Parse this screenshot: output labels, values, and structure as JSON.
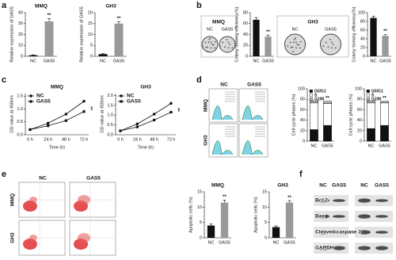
{
  "panel_labels": [
    "a",
    "b",
    "c",
    "d",
    "e",
    "f"
  ],
  "images": {
    "b": {
      "titles": [
        "MMQ",
        "GH3"
      ],
      "columns": [
        "NC",
        "GAS5",
        "NC",
        "GAS5"
      ]
    },
    "d": {
      "columns": [
        "NC",
        "GAS5"
      ],
      "rows": [
        "MMQ",
        "GH3"
      ]
    },
    "e": {
      "columns": [
        "NC",
        "GAS5"
      ],
      "rows": [
        "MMQ",
        "GH3"
      ]
    },
    "f": {
      "columns": [
        "NC",
        "GAS5",
        "NC",
        "GAS5"
      ],
      "rows": [
        "Bcl-2",
        "Bax",
        "Cleaved caspase 3",
        "GAPDH"
      ]
    }
  },
  "chart_data": [
    {
      "type": "bar",
      "title": "MMQ",
      "ylabel": "Relative expression of GAS5",
      "categories": [
        "NC",
        "GAS5"
      ],
      "values": [
        1,
        32
      ],
      "errors": [
        0.3,
        2.5
      ],
      "colors": [
        "#111111",
        "#999999"
      ],
      "ylim": [
        0,
        40
      ],
      "yticks": [
        0,
        10,
        20,
        30,
        40
      ],
      "annotation": "**"
    },
    {
      "type": "bar",
      "title": "GH3",
      "ylabel": "Relative expression of GAS5",
      "categories": [
        "NC",
        "GAS5"
      ],
      "values": [
        1,
        15
      ],
      "errors": [
        0.2,
        0.8
      ],
      "colors": [
        "#111111",
        "#999999"
      ],
      "ylim": [
        0,
        20
      ],
      "yticks": [
        0,
        5,
        10,
        15,
        20
      ],
      "annotation": "**"
    },
    {
      "type": "bar",
      "ylabel": "Colony forming efficiency(%)",
      "categories": [
        "NC",
        "GAS5"
      ],
      "values": [
        67,
        36
      ],
      "errors": [
        4,
        3
      ],
      "colors": [
        "#111111",
        "#999999"
      ],
      "ylim": [
        0,
        80
      ],
      "yticks": [
        0,
        20,
        40,
        60,
        80
      ],
      "annotation": "**"
    },
    {
      "type": "bar",
      "ylabel": "Colony forming efficiency(%)",
      "categories": [
        "NC",
        "GAS5"
      ],
      "values": [
        88,
        47
      ],
      "errors": [
        4,
        3
      ],
      "colors": [
        "#111111",
        "#999999"
      ],
      "ylim": [
        0,
        100
      ],
      "yticks": [
        0,
        20,
        40,
        60,
        80,
        100
      ],
      "annotation": "**"
    },
    {
      "type": "line",
      "title": "MMQ",
      "xlabel": "Time (h)",
      "ylabel": "OD value at 450nm",
      "categories": [
        "0 h",
        "24 h",
        "48 h",
        "72 h"
      ],
      "series": [
        {
          "name": "NC",
          "color": "#111111",
          "marker": "circle",
          "values": [
            0.2,
            0.45,
            0.8,
            1.3
          ]
        },
        {
          "name": "GAS5",
          "color": "#111111",
          "marker": "square",
          "values": [
            0.2,
            0.35,
            0.55,
            0.9
          ]
        }
      ],
      "ylim": [
        0,
        1.6
      ],
      "yticks": [
        {
          "value": 0,
          "label": "0.0"
        },
        0.5,
        {
          "value": 1,
          "label": "1.0"
        },
        1.5
      ],
      "annotation": "**"
    },
    {
      "type": "line",
      "title": "GH3",
      "xlabel": "Time (h)",
      "ylabel": "OD value at 450nm",
      "categories": [
        "0 h",
        "24 h",
        "48 h",
        "72 h"
      ],
      "series": [
        {
          "name": "NC",
          "color": "#111111",
          "marker": "circle",
          "values": [
            0.2,
            0.55,
            1.05,
            1.6
          ]
        },
        {
          "name": "GAS5",
          "color": "#111111",
          "marker": "square",
          "values": [
            0.2,
            0.4,
            0.75,
            1.15
          ]
        }
      ],
      "ylim": [
        0,
        2.1
      ],
      "yticks": [
        {
          "value": 0,
          "label": "0.0"
        },
        0.5,
        {
          "value": 1,
          "label": "1.0"
        },
        1.5,
        {
          "value": 2,
          "label": "2.0"
        }
      ],
      "annotation": "**"
    },
    {
      "type": "stacked_bar",
      "ylabel": "Cell cycle phases (%)",
      "categories": [
        "NC",
        "GAS5"
      ],
      "series": [
        {
          "name": "G0/G1",
          "color": "#111111",
          "values": [
            22,
            30
          ]
        },
        {
          "name": "S",
          "color": "#ffffff",
          "values": [
            51,
            42
          ]
        },
        {
          "name": "G2/M",
          "color": "#bbbbbb",
          "values": [
            4,
            4
          ]
        }
      ],
      "ylim": [
        0,
        100
      ],
      "yticks": [
        0,
        20,
        40,
        60,
        80,
        100
      ],
      "annotation": "**"
    },
    {
      "type": "stacked_bar",
      "ylabel": "Cell cycle phases (%)",
      "categories": [
        "NC",
        "GAS5"
      ],
      "series": [
        {
          "name": "G0/G1",
          "color": "#111111",
          "values": [
            24,
            30
          ]
        },
        {
          "name": "S",
          "color": "#ffffff",
          "values": [
            49,
            43
          ]
        },
        {
          "name": "G2/M",
          "color": "#bbbbbb",
          "values": [
            4,
            3
          ]
        }
      ],
      "ylim": [
        0,
        100
      ],
      "yticks": [
        0,
        20,
        40,
        60,
        80,
        100
      ],
      "annotation": "**"
    },
    {
      "type": "bar",
      "title": "MMQ",
      "ylabel": "Apoptotic cells (%)",
      "categories": [
        "NC",
        "GAS5"
      ],
      "values": [
        4,
        11.5
      ],
      "errors": [
        0.5,
        0.8
      ],
      "colors": [
        "#111111",
        "#999999"
      ],
      "ylim": [
        0,
        15
      ],
      "yticks": [
        0,
        5,
        10,
        15
      ],
      "annotation": "**"
    },
    {
      "type": "bar",
      "title": "GH3",
      "ylabel": "Apoptotic cells (%)",
      "categories": [
        "NC",
        "GAS5"
      ],
      "values": [
        3.5,
        11.5
      ],
      "errors": [
        0.4,
        0.6
      ],
      "colors": [
        "#111111",
        "#999999"
      ],
      "ylim": [
        0,
        15
      ],
      "yticks": [
        0,
        5,
        10,
        15
      ],
      "annotation": "**"
    }
  ]
}
